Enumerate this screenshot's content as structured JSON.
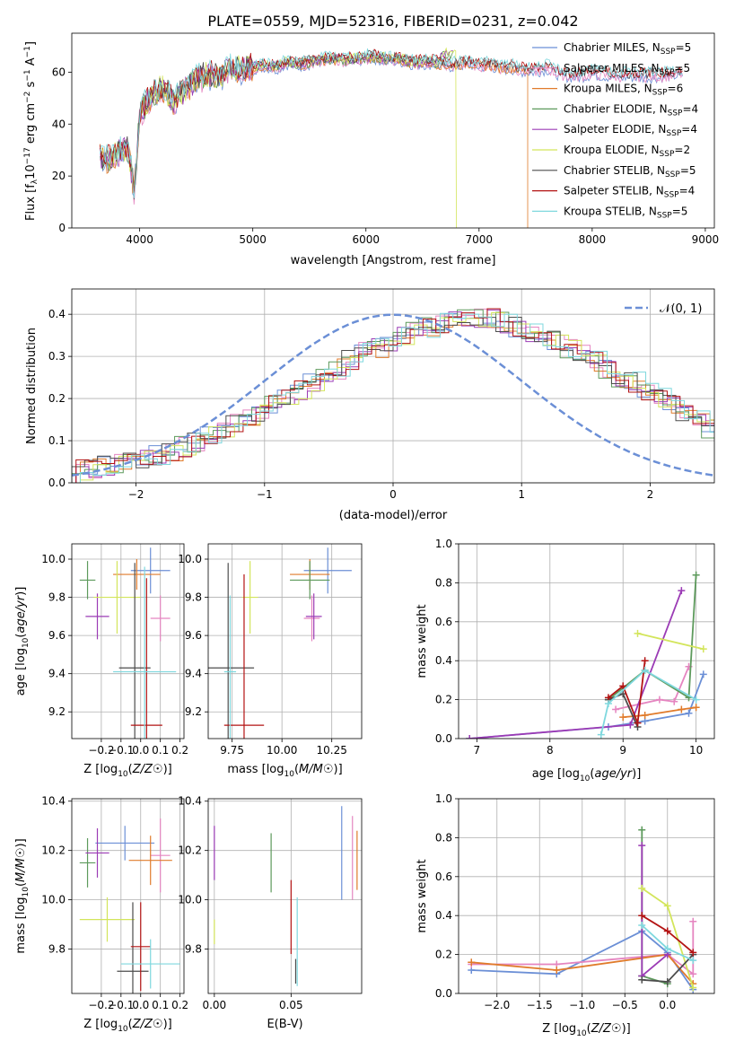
{
  "figure_title": "PLATE=0559, MJD=52316, FIBERID=0231, z=0.042",
  "colors": [
    "#6b8fd6",
    "#e585c0",
    "#e07b2b",
    "#5d9a5c",
    "#9b3bb5",
    "#d3e55b",
    "#4d4d4d",
    "#b31313",
    "#7fd8de"
  ],
  "chart_data": [
    {
      "id": "spectrum",
      "type": "line",
      "title": "PLATE=0559, MJD=52316, FIBERID=0231, z=0.042",
      "xlabel": "wavelength [Angstrom, rest frame]",
      "ylabel": "Flux [f_λ 10^-17 erg cm^-2 s^-1 A^-1]",
      "xlim": [
        3400,
        9080
      ],
      "ylim": [
        0,
        75
      ],
      "xticks": [
        4000,
        5000,
        6000,
        7000,
        8000,
        9000
      ],
      "yticks": [
        0,
        20,
        40,
        60
      ],
      "grid": false,
      "legend_position": "top-right",
      "x": [
        3650,
        3700,
        3800,
        3900,
        3950,
        4000,
        4100,
        4200,
        4300,
        4400,
        4500,
        4600,
        4700,
        4800,
        4900,
        5000,
        5100,
        5200,
        5300,
        5400,
        5500,
        5600,
        5700,
        5800,
        5900,
        6000,
        6100,
        6200,
        6300,
        6400,
        6500,
        6600,
        6700,
        6800,
        6900,
        7000,
        7100,
        7200,
        7300,
        7400,
        7500,
        7600,
        7700,
        7800,
        7900,
        8000,
        8200,
        8400,
        8600,
        8800
      ],
      "y": [
        28,
        26,
        29,
        31,
        14,
        44,
        51,
        54,
        49,
        53,
        57,
        59,
        58,
        62,
        61,
        62,
        63,
        62,
        64,
        63,
        64,
        65,
        65,
        65,
        65,
        66,
        66,
        65,
        65,
        64,
        64,
        64,
        63,
        63,
        64,
        63,
        63,
        62,
        62,
        61,
        61,
        62,
        60,
        59,
        59,
        60,
        59,
        59,
        59,
        60
      ],
      "series": [
        {
          "name": "Chabrier MILES, N_SSP=5",
          "label_main": "Chabrier MILES, N",
          "label_sub": "SSP",
          "label_end": "=5",
          "end": 8800
        },
        {
          "name": "Salpeter MILES, N_SSP=5",
          "label_main": "Salpeter MILES, N",
          "label_sub": "SSP",
          "label_end": "=5",
          "end": 8800
        },
        {
          "name": "Kroupa MILES, N_SSP=6",
          "label_main": "Kroupa MILES, N",
          "label_sub": "SSP",
          "label_end": "=6",
          "end": 7430,
          "drop": 7430
        },
        {
          "name": "Chabrier ELODIE, N_SSP=4",
          "label_main": "Chabrier ELODIE, N",
          "label_sub": "SSP",
          "label_end": "=4",
          "end": 6780
        },
        {
          "name": "Salpeter ELODIE, N_SSP=4",
          "label_main": "Salpeter ELODIE, N",
          "label_sub": "SSP",
          "label_end": "=4",
          "end": 6780
        },
        {
          "name": "Kroupa ELODIE, N_SSP=2",
          "label_main": "Kroupa ELODIE, N",
          "label_sub": "SSP",
          "label_end": "=2",
          "end": 6800,
          "drop": 6800
        },
        {
          "name": "Chabrier STELIB, N_SSP=5",
          "label_main": "Chabrier STELIB, N",
          "label_sub": "SSP",
          "label_end": "=5",
          "end": 8800
        },
        {
          "name": "Salpeter STELIB, N_SSP=4",
          "label_main": "Salpeter STELIB, N",
          "label_sub": "SSP",
          "label_end": "=4",
          "end": 8800
        },
        {
          "name": "Kroupa STELIB, N_SSP=5",
          "label_main": "Kroupa STELIB, N",
          "label_sub": "SSP",
          "label_end": "=5",
          "end": 8800
        }
      ]
    },
    {
      "id": "residuals",
      "type": "histogram",
      "xlabel": "(data-model)/error",
      "ylabel": "Normed distribution",
      "xlim": [
        -2.5,
        2.5
      ],
      "ylim": [
        0,
        0.46
      ],
      "xticks": [
        -2,
        -1,
        0,
        1,
        2
      ],
      "yticks": [
        0.0,
        0.1,
        0.2,
        0.3,
        0.4
      ],
      "grid": true,
      "legend_position": "top-right",
      "reference_curve": "N(0,1)",
      "legend_label": "𝒩(0, 1)",
      "bin_width": 0.1,
      "bins_start": -2.5,
      "profile": [
        0.03,
        0.035,
        0.04,
        0.045,
        0.05,
        0.055,
        0.065,
        0.07,
        0.085,
        0.095,
        0.11,
        0.12,
        0.14,
        0.15,
        0.17,
        0.19,
        0.2,
        0.22,
        0.24,
        0.26,
        0.27,
        0.29,
        0.31,
        0.32,
        0.33,
        0.35,
        0.36,
        0.37,
        0.38,
        0.39,
        0.39,
        0.39,
        0.39,
        0.38,
        0.37,
        0.36,
        0.35,
        0.34,
        0.32,
        0.31,
        0.29,
        0.27,
        0.25,
        0.24,
        0.22,
        0.2,
        0.19,
        0.17,
        0.15,
        0.13
      ]
    },
    {
      "id": "age-vs-Z",
      "type": "errorbar",
      "xlabel": "Z [log10(Z/Z☉)]",
      "ylabel": "age [log10(age/yr)]",
      "xlim": [
        -0.35,
        0.22
      ],
      "ylim": [
        9.06,
        10.08
      ],
      "xticks": [
        -0.2,
        -0.1,
        0.0,
        0.1,
        0.2
      ],
      "yticks": [
        9.2,
        9.4,
        9.6,
        9.8,
        10.0
      ],
      "grid": true,
      "points": [
        {
          "x": 0.05,
          "xerr": 0.1,
          "y": 9.94,
          "yerr": 0.12
        },
        {
          "x": 0.1,
          "xerr": 0.05,
          "y": 9.69,
          "yerr": 0.12
        },
        {
          "x": -0.02,
          "xerr": 0.12,
          "y": 9.92,
          "yerr": 0.08
        },
        {
          "x": -0.27,
          "xerr": 0.04,
          "y": 9.89,
          "yerr": 0.1
        },
        {
          "x": -0.22,
          "xerr": 0.06,
          "y": 9.7,
          "yerr": 0.12
        },
        {
          "x": -0.12,
          "xerr": 0.12,
          "y": 9.8,
          "yerr": 0.19
        },
        {
          "x": -0.03,
          "xerr": 0.08,
          "y": 9.43,
          "yerr": 0.55
        },
        {
          "x": 0.03,
          "xerr": 0.08,
          "y": 9.13,
          "yerr": 0.77
        },
        {
          "x": 0.02,
          "xerr": 0.16,
          "y": 9.41,
          "yerr": 0.55
        }
      ]
    },
    {
      "id": "age-vs-mass",
      "type": "errorbar",
      "xlabel": "mass [log10(M/M☉)]",
      "ylabel": "",
      "xlim": [
        9.63,
        10.4
      ],
      "ylim": [
        9.06,
        10.08
      ],
      "xticks": [
        9.75,
        10.0,
        10.25
      ],
      "tick_labels": [
        "9.75",
        "10.00",
        "10.25"
      ],
      "yticks": [
        9.2,
        9.4,
        9.6,
        9.8,
        10.0
      ],
      "grid": true,
      "points": [
        {
          "x": 10.23,
          "xerr": 0.12,
          "y": 9.94,
          "yerr": 0.12
        },
        {
          "x": 10.15,
          "xerr": 0.04,
          "y": 9.69,
          "yerr": 0.12
        },
        {
          "x": 10.14,
          "xerr": 0.1,
          "y": 9.92,
          "yerr": 0.08
        },
        {
          "x": 10.14,
          "xerr": 0.1,
          "y": 9.89,
          "yerr": 0.1
        },
        {
          "x": 10.16,
          "xerr": 0.04,
          "y": 9.7,
          "yerr": 0.12
        },
        {
          "x": 9.84,
          "xerr": 0.04,
          "y": 9.8,
          "yerr": 0.19
        },
        {
          "x": 9.73,
          "xerr": 0.13,
          "y": 9.43,
          "yerr": 0.55
        },
        {
          "x": 9.81,
          "xerr": 0.1,
          "y": 9.13,
          "yerr": 0.79
        },
        {
          "x": 9.74,
          "xerr": 0.03,
          "y": 9.41,
          "yerr": 0.4
        }
      ]
    },
    {
      "id": "weight-vs-age",
      "type": "line",
      "xlabel": "age [log10(age/yr)]",
      "ylabel": "mass weight",
      "xlim": [
        6.75,
        10.25
      ],
      "ylim": [
        0,
        1.0
      ],
      "xticks": [
        7,
        8,
        9,
        10
      ],
      "yticks": [
        0.0,
        0.2,
        0.4,
        0.6,
        0.8,
        1.0
      ],
      "grid": true,
      "series": [
        {
          "x": [
            6.9,
            8.8,
            9.3,
            9.9,
            10.1
          ],
          "y": [
            0.0,
            0.06,
            0.09,
            0.13,
            0.33
          ]
        },
        {
          "x": [
            8.9,
            9.5,
            9.7,
            9.9
          ],
          "y": [
            0.15,
            0.2,
            0.19,
            0.37
          ]
        },
        {
          "x": [
            9.0,
            9.3,
            9.8,
            10.0
          ],
          "y": [
            0.11,
            0.12,
            0.15,
            0.16
          ]
        },
        {
          "x": [
            8.8,
            9.3,
            9.9,
            10.0
          ],
          "y": [
            0.2,
            0.35,
            0.21,
            0.84
          ]
        },
        {
          "x": [
            6.9,
            9.1,
            9.8
          ],
          "y": [
            0.0,
            0.07,
            0.76
          ]
        },
        {
          "x": [
            9.2,
            10.1
          ],
          "y": [
            0.54,
            0.46
          ]
        },
        {
          "x": [
            8.8,
            9.0,
            9.2
          ],
          "y": [
            0.2,
            0.23,
            0.06
          ]
        },
        {
          "x": [
            8.8,
            9.0,
            9.2,
            9.3
          ],
          "y": [
            0.21,
            0.27,
            0.08,
            0.4
          ]
        },
        {
          "x": [
            8.7,
            8.8,
            9.3,
            10.0
          ],
          "y": [
            0.02,
            0.18,
            0.35,
            0.2
          ]
        }
      ]
    },
    {
      "id": "mass-vs-Z",
      "type": "errorbar",
      "xlabel": "Z [log10(Z/Z☉)]",
      "ylabel": "mass [log10(M/M☉)]",
      "xlim": [
        -0.35,
        0.22
      ],
      "ylim": [
        9.62,
        10.41
      ],
      "xticks": [
        -0.2,
        -0.1,
        0.0,
        0.1,
        0.2
      ],
      "yticks": [
        9.8,
        10.0,
        10.2,
        10.4
      ],
      "grid": true,
      "points": [
        {
          "x": -0.08,
          "xerr": 0.15,
          "y": 10.23,
          "yerr": 0.07
        },
        {
          "x": 0.1,
          "xerr": 0.05,
          "y": 10.18,
          "yerr": 0.15
        },
        {
          "x": 0.05,
          "xerr": 0.11,
          "y": 10.16,
          "yerr": 0.1
        },
        {
          "x": -0.27,
          "xerr": 0.04,
          "y": 10.15,
          "yerr": 0.1
        },
        {
          "x": -0.22,
          "xerr": 0.06,
          "y": 10.19,
          "yerr": 0.1
        },
        {
          "x": -0.17,
          "xerr": 0.14,
          "y": 9.92,
          "yerr": 0.09
        },
        {
          "x": -0.04,
          "xerr": 0.08,
          "y": 9.71,
          "yerr": 0.28
        },
        {
          "x": 0.0,
          "xerr": 0.05,
          "y": 9.81,
          "yerr": 0.18
        },
        {
          "x": 0.05,
          "xerr": 0.15,
          "y": 9.74,
          "yerr": 0.1
        }
      ]
    },
    {
      "id": "mass-vs-EBV",
      "type": "errorbar",
      "xlabel": "E(B-V)",
      "ylabel": "",
      "xlim": [
        -0.004,
        0.096
      ],
      "ylim": [
        9.62,
        10.41
      ],
      "xticks": [
        0.0,
        0.05
      ],
      "tick_labels": [
        "0.00",
        "0.05"
      ],
      "yticks": [
        9.8,
        10.0,
        10.2,
        10.4
      ],
      "grid": true,
      "points": [
        {
          "x": 0.083,
          "y": 10.19,
          "yerr": 0.19
        },
        {
          "x": 0.09,
          "y": 10.17,
          "yerr": 0.17
        },
        {
          "x": 0.093,
          "y": 10.16,
          "yerr": 0.12
        },
        {
          "x": 0.037,
          "y": 10.15,
          "yerr": 0.12
        },
        {
          "x": 0.0,
          "y": 10.19,
          "yerr": 0.11
        },
        {
          "x": 0.0,
          "y": 9.87,
          "yerr": 0.05
        },
        {
          "x": 0.053,
          "y": 9.71,
          "yerr": 0.05
        },
        {
          "x": 0.05,
          "y": 9.93,
          "yerr": 0.15
        },
        {
          "x": 0.054,
          "y": 9.83,
          "yerr": 0.18
        }
      ]
    },
    {
      "id": "weight-vs-Z",
      "type": "line",
      "xlabel": "Z [log10(Z/Z☉)]",
      "ylabel": "mass weight",
      "xlim": [
        -2.45,
        0.55
      ],
      "ylim": [
        0,
        1.0
      ],
      "xticks": [
        -2.0,
        -1.5,
        -1.0,
        -0.5,
        0.0
      ],
      "yticks": [
        0.0,
        0.2,
        0.4,
        0.6,
        0.8,
        1.0
      ],
      "grid": true,
      "series": [
        {
          "x": [
            -2.3,
            -1.3,
            -0.3,
            0.0,
            0.3
          ],
          "y": [
            0.12,
            0.1,
            0.32,
            0.21,
            0.02
          ]
        },
        {
          "x": [
            -2.3,
            -1.3,
            0.0,
            0.3,
            0.3
          ],
          "y": [
            0.15,
            0.15,
            0.2,
            0.1,
            0.37
          ]
        },
        {
          "x": [
            -2.3,
            -1.3,
            0.0,
            0.3
          ],
          "y": [
            0.16,
            0.12,
            0.2,
            0.05
          ]
        },
        {
          "x": [
            -0.3,
            -0.3,
            0.0
          ],
          "y": [
            0.84,
            0.09,
            0.05
          ]
        },
        {
          "x": [
            -0.3,
            -0.3,
            0.0
          ],
          "y": [
            0.76,
            0.09,
            0.2
          ]
        },
        {
          "x": [
            -0.3,
            0.0,
            0.3
          ],
          "y": [
            0.54,
            0.45,
            0.03
          ]
        },
        {
          "x": [
            -0.3,
            0.0,
            0.3
          ],
          "y": [
            0.07,
            0.06,
            0.2
          ]
        },
        {
          "x": [
            -0.3,
            0.0,
            0.3
          ],
          "y": [
            0.4,
            0.32,
            0.21
          ]
        },
        {
          "x": [
            -0.3,
            0.0,
            0.3
          ],
          "y": [
            0.35,
            0.23,
            0.17
          ]
        }
      ]
    }
  ]
}
